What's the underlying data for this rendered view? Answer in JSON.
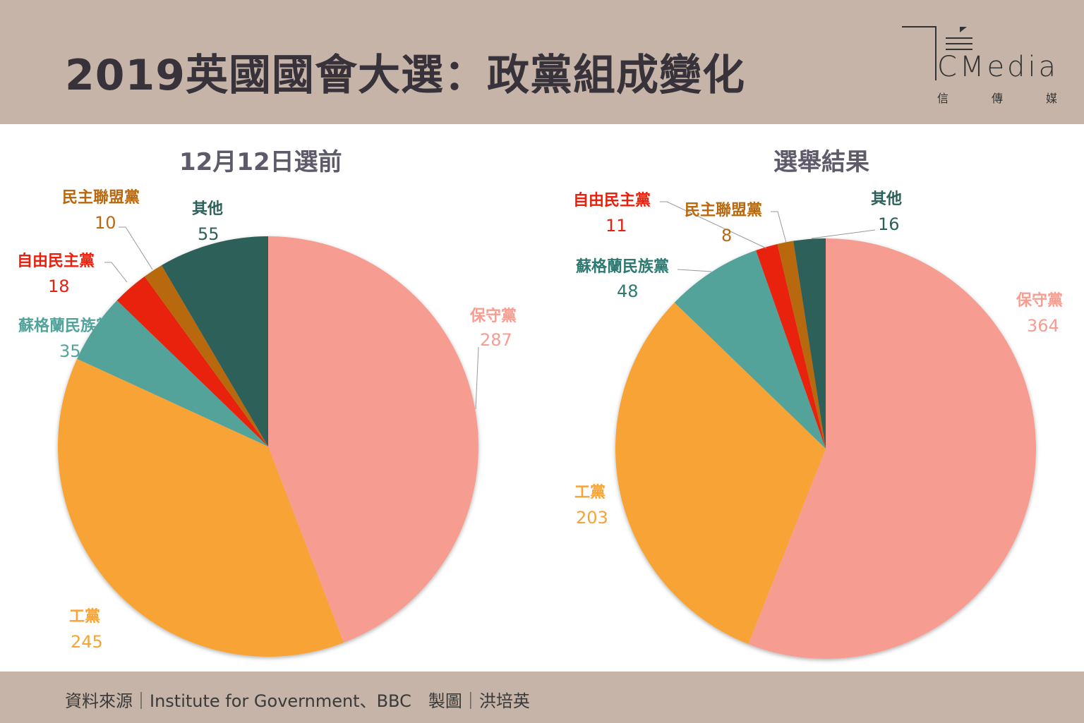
{
  "header": {
    "title": "2019英國國會大選：政黨組成變化",
    "logo_text": "CMedia",
    "logo_sub": [
      "信",
      "傳",
      "媒"
    ]
  },
  "footer": {
    "source": "資料來源｜Institute for Government、BBC　製圖｜洪培英"
  },
  "colors": {
    "保守黨": "#F79C91",
    "工黨": "#F7A335",
    "蘇格蘭民族黨": "#52A39A",
    "自由民主黨": "#E8200E",
    "民主聯盟黨": "#B8690F",
    "其他": "#2E605A"
  },
  "chart_data": [
    {
      "type": "pie",
      "title": "12月12日選前",
      "categories": [
        "保守黨",
        "工黨",
        "蘇格蘭民族黨",
        "自由民主黨",
        "民主聯盟黨",
        "其他"
      ],
      "values": [
        287,
        245,
        35,
        18,
        10,
        55
      ],
      "start": "top",
      "direction": "clockwise"
    },
    {
      "type": "pie",
      "title": "選舉結果",
      "categories": [
        "保守黨",
        "工黨",
        "蘇格蘭民族黨",
        "自由民主黨",
        "民主聯盟黨",
        "其他"
      ],
      "values": [
        364,
        203,
        48,
        11,
        8,
        16
      ],
      "start": "top",
      "direction": "clockwise"
    }
  ]
}
